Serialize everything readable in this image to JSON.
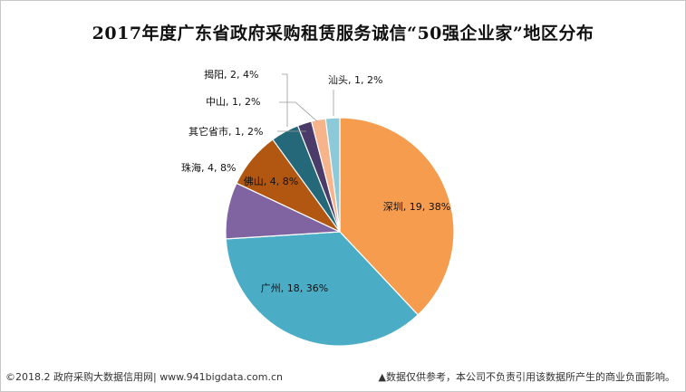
{
  "chart_data": {
    "type": "pie",
    "title": "2017年度广东省政府采购租赁服务诚信“50强企业家”地区分布",
    "slices": [
      {
        "name": "深圳",
        "value": 19,
        "percent": "38%",
        "color": "#F59C4E"
      },
      {
        "name": "广州",
        "value": 18,
        "percent": "36%",
        "color": "#4BACC6"
      },
      {
        "name": "珠海",
        "value": 4,
        "percent": "8%",
        "color": "#8064A2"
      },
      {
        "name": "佛山",
        "value": 4,
        "percent": "8%",
        "color": "#B15711"
      },
      {
        "name": "揭阳",
        "value": 2,
        "percent": "4%",
        "color": "#24687A"
      },
      {
        "name": "其它省市",
        "value": 1,
        "percent": "2%",
        "color": "#4A3B69"
      },
      {
        "name": "中山",
        "value": 1,
        "percent": "2%",
        "color": "#F7B48A"
      },
      {
        "name": "汕头",
        "value": 1,
        "percent": "2%",
        "color": "#8CCAD9"
      }
    ],
    "legend": "none"
  },
  "footer": {
    "source": "©2018.2 政府采购大数据信用网| www.941bigdata.com.cn",
    "disclaimer": "▲数据仅供参考，本公司不负责引用该数据所产生的商业负面影响。"
  }
}
